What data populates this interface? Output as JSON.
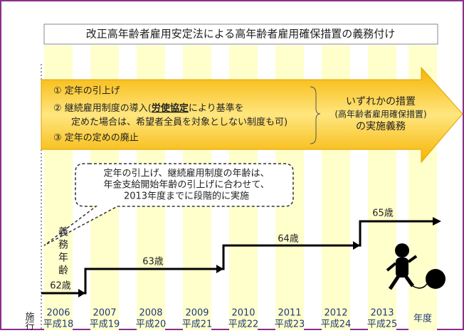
{
  "title": "改正高年齢者雇用安定法による高年齢者雇用確保措置の義務付け",
  "measures": {
    "items": [
      "① 定年の引上げ",
      "③ 定年の定めの廃止"
    ],
    "item2": {
      "before": "② 継続雇用制度の導入(",
      "emphasis": "労使協定",
      "after": "により基準を",
      "line2": "定めた場合は、希望者全員を対象としない制度も可)"
    },
    "result": [
      "いずれかの措置",
      "(高年齢者雇用確保措置)",
      "の実施義務"
    ]
  },
  "callout": [
    "定年の引上げ、継続雇用制度の年齢は、",
    "年金支給開始年齢の引上げに合わせて、",
    "2013年度までに段階的に実施"
  ],
  "axis_label": "義務年齢",
  "steps": [
    "62歳",
    "63歳",
    "64歳",
    "65歳"
  ],
  "footer_label": "施行",
  "years": [
    {
      "year": "2006",
      "era": "平成18"
    },
    {
      "year": "2007",
      "era": "平成19"
    },
    {
      "year": "2008",
      "era": "平成20"
    },
    {
      "year": "2009",
      "era": "平成21"
    },
    {
      "year": "2010",
      "era": "平成22"
    },
    {
      "year": "2011",
      "era": "平成23"
    },
    {
      "year": "2012",
      "era": "平成24"
    },
    {
      "year": "2013",
      "era": "平成25"
    }
  ],
  "unit": "年度"
}
